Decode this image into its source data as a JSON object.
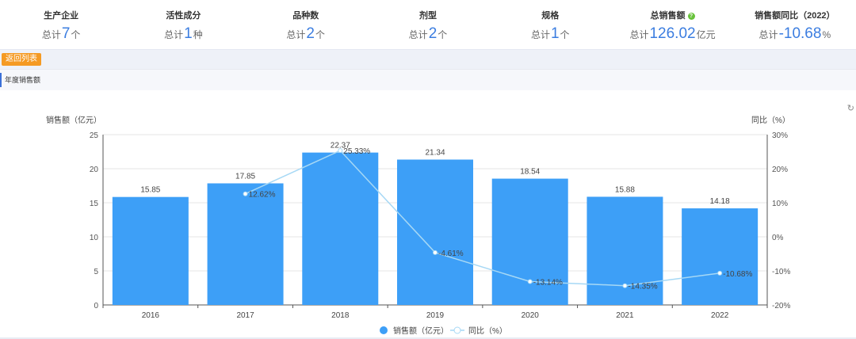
{
  "stats": [
    {
      "title": "生产企业",
      "prefix": "总计",
      "value": "7",
      "unit": "个"
    },
    {
      "title": "活性成分",
      "prefix": "总计",
      "value": "1",
      "unit": "种"
    },
    {
      "title": "品种数",
      "prefix": "总计",
      "value": "2",
      "unit": "个"
    },
    {
      "title": "剂型",
      "prefix": "总计",
      "value": "2",
      "unit": "个"
    },
    {
      "title": "规格",
      "prefix": "总计",
      "value": "1",
      "unit": "个"
    },
    {
      "title": "总销售额",
      "prefix": "总计",
      "value": "126.02",
      "unit": "亿元"
    },
    {
      "title": "销售额同比（2022）",
      "prefix": "总计",
      "value": "-10.68",
      "unit": "%"
    }
  ],
  "back_button": "返回列表",
  "section_title": "年度销售额",
  "icons": {
    "help": "help-circle-icon",
    "refresh": "refresh-icon"
  },
  "chart_data": {
    "type": "bar",
    "categories": [
      "2016",
      "2017",
      "2018",
      "2019",
      "2020",
      "2021",
      "2022"
    ],
    "series": [
      {
        "name": "销售额（亿元）",
        "type": "bar",
        "axis": "left",
        "color": "#3d9ff7",
        "values": [
          15.85,
          17.85,
          22.37,
          21.34,
          18.54,
          15.88,
          14.18
        ],
        "labels": [
          "15.85",
          "17.85",
          "22.37",
          "21.34",
          "18.54",
          "15.88",
          "14.18"
        ]
      },
      {
        "name": "同比（%）",
        "type": "line",
        "axis": "right",
        "color": "#a6d8f5",
        "values": [
          null,
          12.62,
          25.33,
          -4.61,
          -13.14,
          -14.35,
          -10.68
        ],
        "labels": [
          "",
          "12.62%",
          "25.33%",
          "-4.61%",
          "-13.14%",
          "-14.35%",
          "-10.68%"
        ]
      }
    ],
    "ylabel": "销售额（亿元）",
    "y2label": "同比（%）",
    "ylim": [
      0,
      25
    ],
    "yticks": [
      "0",
      "5",
      "10",
      "15",
      "20",
      "25"
    ],
    "y2lim": [
      -20,
      30
    ],
    "y2ticks": [
      "-20%",
      "-10%",
      "0%",
      "10%",
      "20%",
      "30%"
    ],
    "legend_position": "bottom-center"
  }
}
